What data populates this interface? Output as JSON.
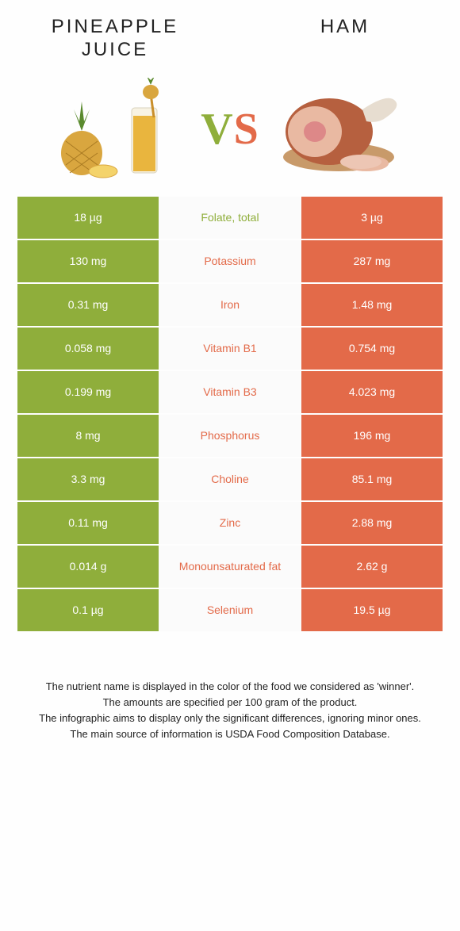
{
  "colors": {
    "left": "#8fae3b",
    "right": "#e36a49",
    "mid_bg": "#fbfbfb",
    "cell_text": "#ffffff",
    "body_bg": "#fefefe"
  },
  "headers": {
    "left_line1": "PINEAPPLE",
    "left_line2": "JUICE",
    "right": "HAM"
  },
  "vs": {
    "v": "V",
    "s": "S"
  },
  "rows": [
    {
      "left": "18 µg",
      "name": "Folate, total",
      "right": "3 µg",
      "winner": "left"
    },
    {
      "left": "130 mg",
      "name": "Potassium",
      "right": "287 mg",
      "winner": "right"
    },
    {
      "left": "0.31 mg",
      "name": "Iron",
      "right": "1.48 mg",
      "winner": "right"
    },
    {
      "left": "0.058 mg",
      "name": "Vitamin B1",
      "right": "0.754 mg",
      "winner": "right"
    },
    {
      "left": "0.199 mg",
      "name": "Vitamin B3",
      "right": "4.023 mg",
      "winner": "right"
    },
    {
      "left": "8 mg",
      "name": "Phosphorus",
      "right": "196 mg",
      "winner": "right"
    },
    {
      "left": "3.3 mg",
      "name": "Choline",
      "right": "85.1 mg",
      "winner": "right"
    },
    {
      "left": "0.11 mg",
      "name": "Zinc",
      "right": "2.88 mg",
      "winner": "right"
    },
    {
      "left": "0.014 g",
      "name": "Monounsaturated fat",
      "right": "2.62 g",
      "winner": "right"
    },
    {
      "left": "0.1 µg",
      "name": "Selenium",
      "right": "19.5 µg",
      "winner": "right"
    }
  ],
  "footnotes": [
    "The nutrient name is displayed in the color of the food we considered as 'winner'.",
    "The amounts are specified per 100 gram of the product.",
    "The infographic aims to display only the significant differences, ignoring minor ones.",
    "The main source of information is USDA Food Composition Database."
  ]
}
